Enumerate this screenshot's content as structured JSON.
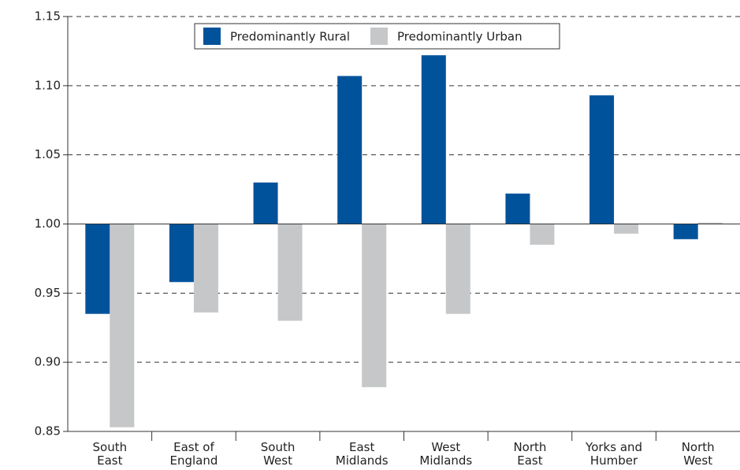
{
  "chart_data": {
    "type": "bar",
    "categories": [
      "South\nEast",
      "East of\nEngland",
      "South\nWest",
      "East\nMidlands",
      "West\nMidlands",
      "North\nEast",
      "Yorks and\nHumber",
      "North\nWest"
    ],
    "series": [
      {
        "name": "Predominantly Rural",
        "color": "#00529b",
        "values": [
          0.935,
          0.958,
          1.03,
          1.107,
          1.122,
          1.022,
          1.093,
          0.989
        ]
      },
      {
        "name": "Predominantly Urban",
        "color": "#c6c7c9",
        "values": [
          0.853,
          0.936,
          0.93,
          0.882,
          0.935,
          0.985,
          0.993,
          1.001
        ]
      }
    ],
    "baseline": 1,
    "ylim": [
      0.85,
      1.15
    ],
    "yticks": [
      0.85,
      {
        "value": 0.9,
        "label": "0.90"
      },
      0.95,
      {
        "value": 1,
        "label": "1.00"
      },
      1.05,
      {
        "value": 1.1,
        "label": "1.10"
      },
      1.15
    ],
    "grid": true,
    "legend": "top"
  }
}
